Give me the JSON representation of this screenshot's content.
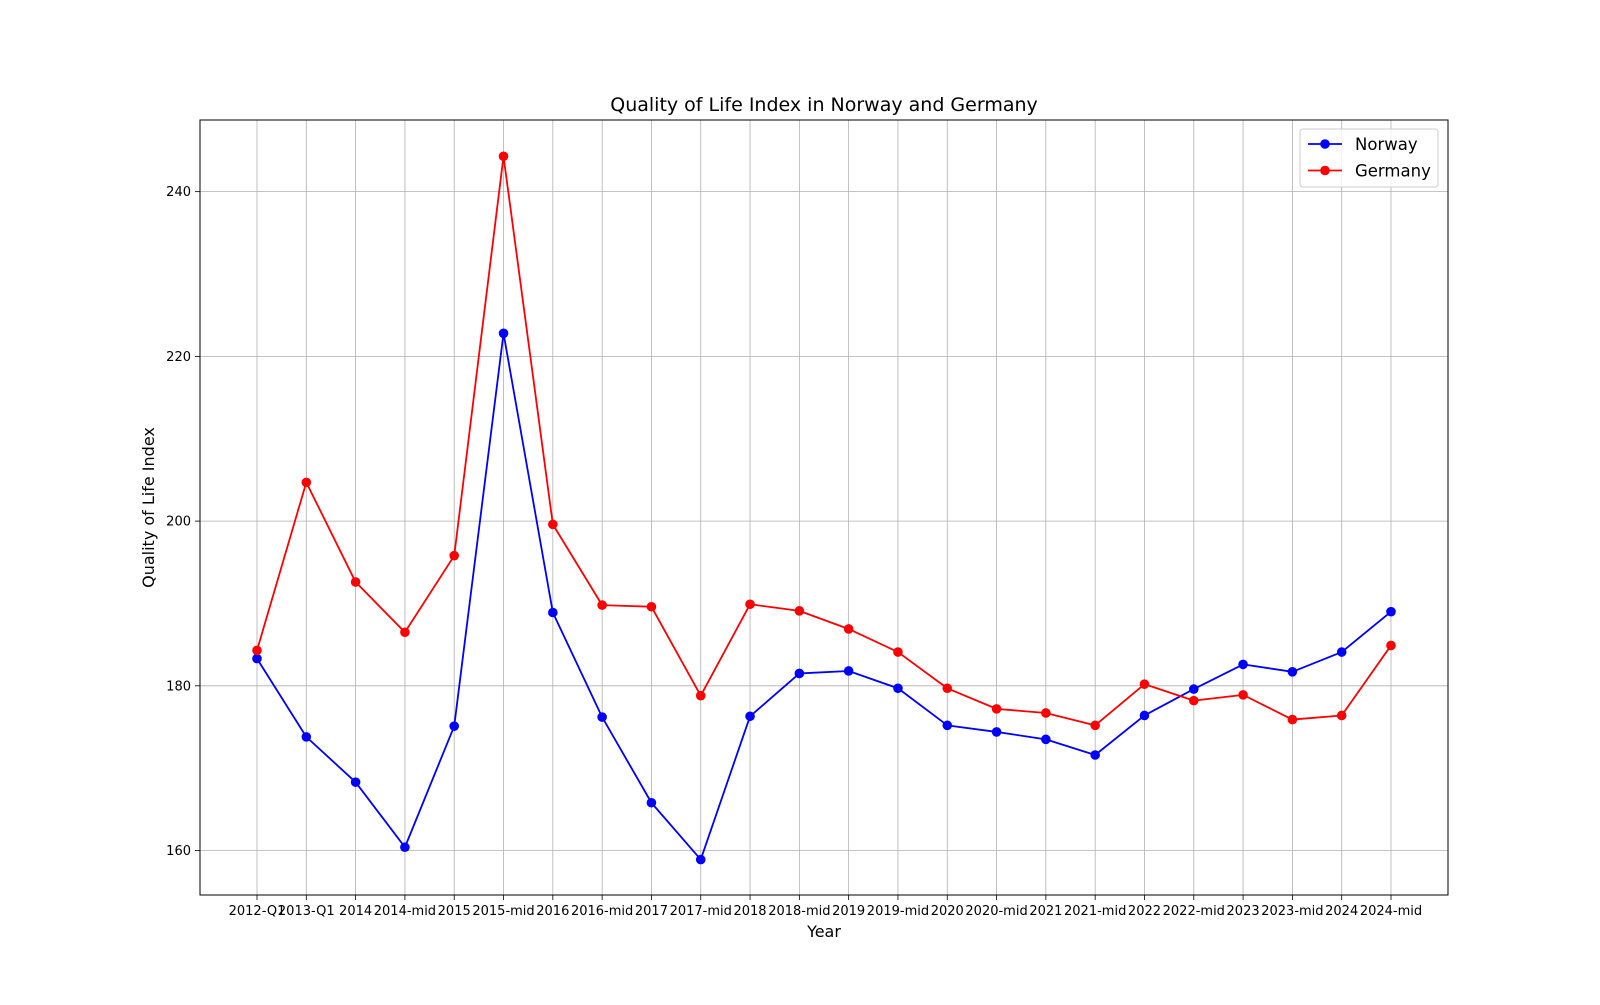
{
  "chart_data": {
    "type": "line",
    "title": "Quality of Life Index in Norway and Germany",
    "xlabel": "Year",
    "ylabel": "Quality of Life Index",
    "categories": [
      "2012-Q1",
      "2013-Q1",
      "2014",
      "2014-mid",
      "2015",
      "2015-mid",
      "2016",
      "2016-mid",
      "2017",
      "2017-mid",
      "2018",
      "2018-mid",
      "2019",
      "2019-mid",
      "2020",
      "2020-mid",
      "2021",
      "2021-mid",
      "2022",
      "2022-mid",
      "2023",
      "2023-mid",
      "2024",
      "2024-mid"
    ],
    "ylim": [
      154.6,
      248.7
    ],
    "yticks": [
      160,
      180,
      200,
      220,
      240
    ],
    "grid": true,
    "legend_position": "top-right",
    "series": [
      {
        "name": "Norway",
        "color": "#0000ff",
        "values": [
          183.3,
          173.8,
          168.3,
          160.4,
          175.1,
          222.8,
          188.9,
          176.2,
          165.8,
          158.9,
          176.3,
          181.5,
          181.8,
          179.7,
          175.2,
          174.4,
          173.5,
          171.6,
          176.4,
          179.6,
          182.6,
          181.7,
          184.1,
          189.0
        ]
      },
      {
        "name": "Germany",
        "color": "#ff0000",
        "values": [
          184.3,
          204.7,
          192.6,
          186.5,
          195.8,
          244.3,
          199.6,
          189.8,
          189.6,
          178.8,
          189.9,
          189.1,
          186.9,
          184.1,
          179.7,
          177.2,
          176.7,
          175.2,
          180.2,
          178.2,
          178.9,
          175.9,
          176.4,
          184.9
        ]
      }
    ]
  }
}
